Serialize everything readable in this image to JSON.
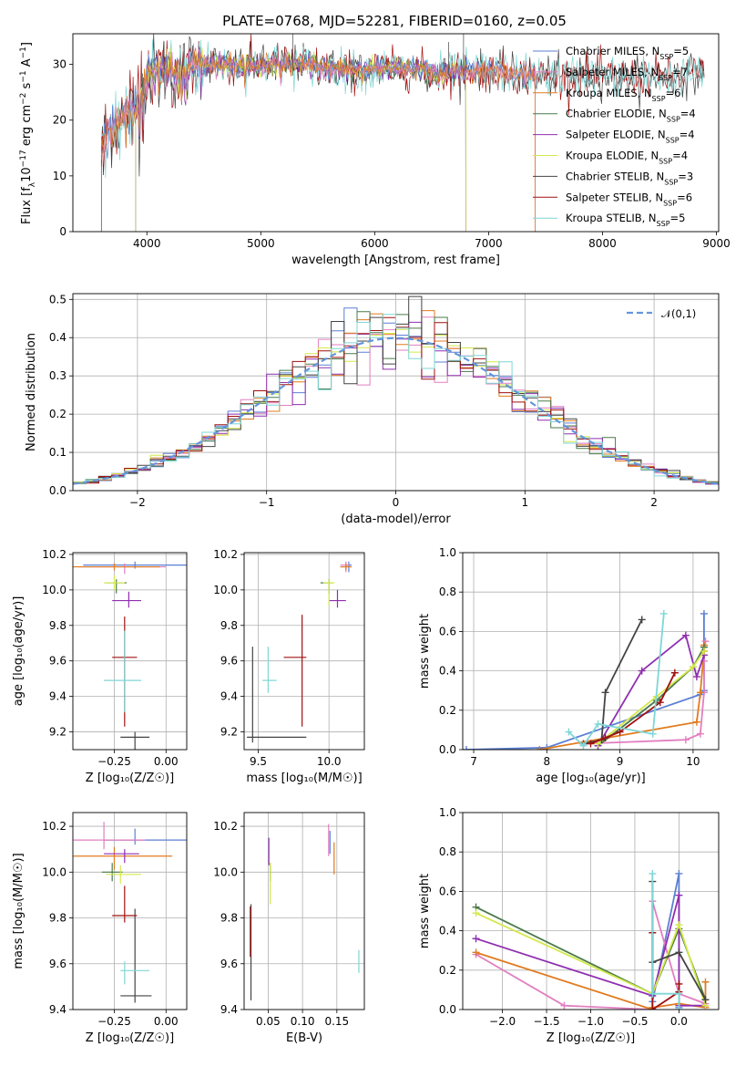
{
  "figure_title": "PLATE=0768, MJD=52281, FIBERID=0160, z=0.05",
  "colors": {
    "Chabrier MILES": "#5b7fd4",
    "Salpeter MILES": "#e27fc1",
    "Kroupa MILES": "#e07b1f",
    "Chabrier ELODIE": "#4a7a4a",
    "Salpeter ELODIE": "#8f2fb0",
    "Kroupa ELODIE": "#d4e84a",
    "Chabrier STELIB": "#444444",
    "Salpeter STELIB": "#a01010",
    "Kroupa STELIB": "#7fd6d6"
  },
  "chart_data": [
    {
      "id": "spectrum",
      "type": "line",
      "xlabel": "wavelength [Angstrom, rest frame]",
      "ylabel": "Flux [f_λ 10^-17 erg cm^-2 s^-1 A^-1]",
      "xlim": [
        3350,
        9020
      ],
      "ylim": [
        0,
        35.5
      ],
      "xticks": [
        4000,
        5000,
        6000,
        7000,
        8000,
        9000
      ],
      "yticks": [
        0,
        10,
        20,
        30
      ],
      "grid": false,
      "legend_placement": "upper-right",
      "legend": [
        {
          "name": "Chabrier MILES",
          "suffix": "=5"
        },
        {
          "name": "Salpeter MILES",
          "suffix": "=7"
        },
        {
          "name": "Kroupa MILES",
          "suffix": "=6"
        },
        {
          "name": "Chabrier ELODIE",
          "suffix": "=4"
        },
        {
          "name": "Salpeter ELODIE",
          "suffix": "=4"
        },
        {
          "name": "Kroupa ELODIE",
          "suffix": "=4"
        },
        {
          "name": "Chabrier STELIB",
          "suffix": "=3"
        },
        {
          "name": "Salpeter STELIB",
          "suffix": "=6"
        },
        {
          "name": "Kroupa STELIB",
          "suffix": "=5"
        }
      ],
      "legend_sub": "N",
      "legend_subscript": "SSP",
      "continuum": {
        "x": [
          3600,
          3700,
          3800,
          3900,
          4000,
          4100,
          4200,
          4300,
          4400,
          4500,
          4600,
          4800,
          5000,
          5200,
          5400,
          5600,
          5800,
          6000,
          6200,
          6400,
          6600,
          6800,
          7000,
          7200,
          7400,
          7600,
          7800,
          8000,
          8200,
          8400,
          8600,
          8800
        ],
        "y": [
          15.5,
          18.5,
          20.5,
          22,
          28,
          29.5,
          28.8,
          28.5,
          30,
          30.4,
          30.2,
          29.7,
          29.8,
          30.3,
          30,
          29.3,
          28.9,
          29.2,
          29.3,
          29.1,
          28.4,
          29.0,
          28.9,
          28.4,
          28.1,
          27.8,
          28.2,
          28.0,
          27.6,
          28.0,
          27.7,
          28.2
        ]
      }
    },
    {
      "id": "residuals",
      "type": "bar",
      "xlabel": "(data-model)/error",
      "ylabel": "Normed distribution",
      "xlim": [
        -2.5,
        2.5
      ],
      "ylim": [
        0,
        0.515
      ],
      "xticks": [
        -2,
        -1,
        0,
        1,
        2
      ],
      "yticks": [
        0.0,
        0.1,
        0.2,
        0.3,
        0.4,
        0.5
      ],
      "grid": true,
      "legend": [
        {
          "name": "𝒩(0,1)"
        }
      ],
      "legend_placement": "upper-right",
      "bin_width": 0.1,
      "bins_start": -2.5,
      "gaussian_mean": 0,
      "gaussian_sigma": 1
    },
    {
      "id": "age-vs-Z",
      "type": "errorbar",
      "xlabel": "Z [log₁₀(Z/Z☉)]",
      "ylabel": "age  [log₁₀(age/yr)]",
      "xlim": [
        -0.45,
        0.1
      ],
      "ylim": [
        9.1,
        10.21
      ],
      "xticks": [
        -0.25,
        0.0
      ],
      "yticks": [
        9.2,
        9.4,
        9.6,
        9.8,
        10.0,
        10.2
      ],
      "grid": true,
      "points": [
        {
          "s": "Chabrier MILES",
          "x": -0.15,
          "y": 10.14,
          "xe": [
            0.25,
            0.25
          ],
          "ye": [
            0.02,
            0.02
          ]
        },
        {
          "s": "Salpeter MILES",
          "x": -0.2,
          "y": 10.13,
          "xe": [
            0.22,
            0.2
          ],
          "ye": [
            0.04,
            0.02
          ]
        },
        {
          "s": "Kroupa MILES",
          "x": -0.25,
          "y": 10.13,
          "xe": [
            0.2,
            0.22
          ],
          "ye": [
            0.02,
            0.02
          ]
        },
        {
          "s": "Chabrier ELODIE",
          "x": -0.24,
          "y": 10.04,
          "xe": [
            0.05,
            0.05
          ],
          "ye": [
            0.06,
            0.02
          ]
        },
        {
          "s": "Salpeter ELODIE",
          "x": -0.18,
          "y": 9.94,
          "xe": [
            0.08,
            0.06
          ],
          "ye": [
            0.04,
            0.05
          ]
        },
        {
          "s": "Kroupa ELODIE",
          "x": -0.25,
          "y": 10.04,
          "xe": [
            0.05,
            0.05
          ],
          "ye": [
            0.04,
            0.04
          ]
        },
        {
          "s": "Chabrier STELIB",
          "x": -0.15,
          "y": 9.17,
          "xe": [
            0.07,
            0.07
          ],
          "ye": [
            0.5,
            0.03
          ]
        },
        {
          "s": "Salpeter STELIB",
          "x": -0.2,
          "y": 9.62,
          "xe": [
            0.06,
            0.06
          ],
          "ye": [
            0.39,
            0.23
          ]
        },
        {
          "s": "Kroupa STELIB",
          "x": -0.2,
          "y": 9.49,
          "xe": [
            0.1,
            0.08
          ],
          "ye": [
            0.18,
            0.28
          ]
        }
      ]
    },
    {
      "id": "age-vs-mass",
      "type": "errorbar",
      "xlabel": "mass [log₁₀(M/M☉)]",
      "ylabel": "",
      "xlim": [
        9.4,
        10.25
      ],
      "ylim": [
        9.1,
        10.21
      ],
      "xticks": [
        9.5,
        10.0
      ],
      "yticks": [
        9.2,
        9.4,
        9.6,
        9.8,
        10.0,
        10.2
      ],
      "grid": true,
      "points": [
        {
          "s": "Chabrier MILES",
          "x": 10.14,
          "y": 10.14,
          "xe": [
            0.02,
            0.02
          ],
          "ye": [
            0.04,
            0.02
          ]
        },
        {
          "s": "Salpeter MILES",
          "x": 10.12,
          "y": 10.14,
          "xe": [
            0.04,
            0.02
          ],
          "ye": [
            0.04,
            0.02
          ]
        },
        {
          "s": "Kroupa MILES",
          "x": 10.12,
          "y": 10.13,
          "xe": [
            0.04,
            0.04
          ],
          "ye": [
            0.02,
            0.02
          ]
        },
        {
          "s": "Chabrier ELODIE",
          "x": 10.0,
          "y": 10.04,
          "xe": [
            0.06,
            0.02
          ],
          "ye": [
            0.06,
            0.02
          ]
        },
        {
          "s": "Salpeter ELODIE",
          "x": 10.06,
          "y": 9.94,
          "xe": [
            0.06,
            0.06
          ],
          "ye": [
            0.04,
            0.06
          ]
        },
        {
          "s": "Kroupa ELODIE",
          "x": 10.0,
          "y": 10.04,
          "xe": [
            0.04,
            0.04
          ],
          "ye": [
            0.13,
            0.02
          ]
        },
        {
          "s": "Chabrier STELIB",
          "x": 9.46,
          "y": 9.17,
          "xe": [
            0.04,
            0.38
          ],
          "ye": [
            0.03,
            0.51
          ]
        },
        {
          "s": "Salpeter STELIB",
          "x": 9.81,
          "y": 9.62,
          "xe": [
            0.13,
            0.03
          ],
          "ye": [
            0.39,
            0.24
          ]
        },
        {
          "s": "Kroupa STELIB",
          "x": 9.57,
          "y": 9.49,
          "xe": [
            0.04,
            0.06
          ],
          "ye": [
            0.07,
            0.19
          ]
        }
      ]
    },
    {
      "id": "massweight-vs-age",
      "type": "line",
      "xlabel": "age  [log₁₀(age/yr)]",
      "ylabel": "mass weight",
      "xlim": [
        6.85,
        10.35
      ],
      "ylim": [
        0,
        1.0
      ],
      "xticks": [
        7,
        8,
        9,
        10
      ],
      "yticks": [
        0.0,
        0.2,
        0.4,
        0.6,
        0.8,
        1.0
      ],
      "grid": true,
      "series": [
        {
          "name": "Chabrier MILES",
          "x": [
            6.9,
            8.0,
            10.1,
            10.15,
            10.15
          ],
          "y": [
            0.0,
            0.01,
            0.28,
            0.3,
            0.69
          ]
        },
        {
          "name": "Salpeter MILES",
          "x": [
            8.5,
            9.9,
            10.1,
            10.15,
            10.15,
            10.15,
            10.17
          ],
          "y": [
            0.03,
            0.05,
            0.08,
            0.29,
            0.45,
            0.5,
            0.55
          ]
        },
        {
          "name": "Kroupa MILES",
          "x": [
            7.9,
            10.05,
            10.1,
            10.15,
            10.15,
            10.15
          ],
          "y": [
            0.0,
            0.14,
            0.29,
            0.5,
            0.53,
            0.53
          ]
        },
        {
          "name": "Chabrier ELODIE",
          "x": [
            8.7,
            9.5,
            10.0,
            10.15
          ],
          "y": [
            0.02,
            0.25,
            0.42,
            0.52
          ]
        },
        {
          "name": "Salpeter ELODIE",
          "x": [
            8.7,
            9.3,
            9.9,
            10.05,
            10.15
          ],
          "y": [
            0.02,
            0.4,
            0.58,
            0.37,
            0.48
          ]
        },
        {
          "name": "Kroupa ELODIE",
          "x": [
            8.7,
            9.5,
            10.0,
            10.15
          ],
          "y": [
            0.03,
            0.27,
            0.42,
            0.5
          ]
        },
        {
          "name": "Chabrier STELIB",
          "x": [
            8.5,
            8.75,
            8.8,
            9.3
          ],
          "y": [
            0.03,
            0.05,
            0.29,
            0.66
          ]
        },
        {
          "name": "Salpeter STELIB",
          "x": [
            8.6,
            8.8,
            9.0,
            9.55,
            9.75
          ],
          "y": [
            0.03,
            0.06,
            0.09,
            0.24,
            0.39
          ]
        },
        {
          "name": "Kroupa STELIB",
          "x": [
            8.3,
            8.5,
            8.7,
            9.45,
            9.6
          ],
          "y": [
            0.09,
            0.02,
            0.13,
            0.08,
            0.69
          ]
        }
      ]
    },
    {
      "id": "mass-vs-Z",
      "type": "errorbar",
      "xlabel": "Z [log₁₀(Z/Z☉)]",
      "ylabel": "mass [log₁₀(M/M☉)]",
      "xlim": [
        -0.45,
        0.1
      ],
      "ylim": [
        9.4,
        10.26
      ],
      "xticks": [
        -0.25,
        0.0
      ],
      "yticks": [
        9.4,
        9.6,
        9.8,
        10.0,
        10.2
      ],
      "grid": true,
      "points": [
        {
          "s": "Chabrier MILES",
          "x": -0.15,
          "y": 10.14,
          "xe": [
            0.15,
            0.25
          ],
          "ye": [
            0.02,
            0.05
          ]
        },
        {
          "s": "Salpeter MILES",
          "x": -0.3,
          "y": 10.14,
          "xe": [
            0.15,
            0.2
          ],
          "ye": [
            0.04,
            0.08
          ]
        },
        {
          "s": "Kroupa MILES",
          "x": -0.25,
          "y": 10.07,
          "xe": [
            0.2,
            0.28
          ],
          "ye": [
            0.06,
            0.04
          ]
        },
        {
          "s": "Chabrier ELODIE",
          "x": -0.26,
          "y": 10.0,
          "xe": [
            0.05,
            0.05
          ],
          "ye": [
            0.04,
            0.04
          ]
        },
        {
          "s": "Salpeter ELODIE",
          "x": -0.2,
          "y": 10.08,
          "xe": [
            0.1,
            0.07
          ],
          "ye": [
            0.04,
            0.02
          ]
        },
        {
          "s": "Kroupa ELODIE",
          "x": -0.22,
          "y": 9.99,
          "xe": [
            0.07,
            0.1
          ],
          "ye": [
            0.04,
            0.04
          ]
        },
        {
          "s": "Chabrier STELIB",
          "x": -0.15,
          "y": 9.46,
          "xe": [
            0.07,
            0.08
          ],
          "ye": [
            0.03,
            0.38
          ]
        },
        {
          "s": "Salpeter STELIB",
          "x": -0.2,
          "y": 9.81,
          "xe": [
            0.06,
            0.06
          ],
          "ye": [
            0.03,
            0.13
          ]
        },
        {
          "s": "Kroupa STELIB",
          "x": -0.2,
          "y": 9.57,
          "xe": [
            0.02,
            0.12
          ],
          "ye": [
            0.06,
            0.04
          ]
        }
      ]
    },
    {
      "id": "mass-vs-EBV",
      "type": "errorbar",
      "xlabel": "E(B-V)",
      "ylabel": "",
      "xlim": [
        0.015,
        0.19
      ],
      "ylim": [
        9.4,
        10.26
      ],
      "xticks": [
        0.05,
        0.1,
        0.15
      ],
      "yticks": [
        9.4,
        9.6,
        9.8,
        10.0,
        10.2
      ],
      "grid": true,
      "points": [
        {
          "s": "Chabrier MILES",
          "x": 0.14,
          "y": 10.14,
          "xe": [
            0,
            0
          ],
          "ye": [
            0.06,
            0.04
          ]
        },
        {
          "s": "Salpeter MILES",
          "x": 0.138,
          "y": 10.15,
          "xe": [
            0,
            0
          ],
          "ye": [
            0.08,
            0.06
          ]
        },
        {
          "s": "Kroupa MILES",
          "x": 0.146,
          "y": 10.07,
          "xe": [
            0,
            0
          ],
          "ye": [
            0.08,
            0.06
          ]
        },
        {
          "s": "Chabrier ELODIE",
          "x": 0.053,
          "y": 10.0,
          "xe": [
            0,
            0
          ],
          "ye": [
            0.04,
            0.04
          ]
        },
        {
          "s": "Salpeter ELODIE",
          "x": 0.051,
          "y": 10.08,
          "xe": [
            0,
            0
          ],
          "ye": [
            0.05,
            0.07
          ]
        },
        {
          "s": "Kroupa ELODIE",
          "x": 0.053,
          "y": 9.94,
          "xe": [
            0,
            0
          ],
          "ye": [
            0.08,
            0.1
          ]
        },
        {
          "s": "Chabrier STELIB",
          "x": 0.025,
          "y": 9.6,
          "xe": [
            0,
            0
          ],
          "ye": [
            0.16,
            0.26
          ]
        },
        {
          "s": "Salpeter STELIB",
          "x": 0.024,
          "y": 9.73,
          "xe": [
            0,
            0
          ],
          "ye": [
            0.1,
            0.12
          ]
        },
        {
          "s": "Kroupa STELIB",
          "x": 0.182,
          "y": 9.6,
          "xe": [
            0,
            0
          ],
          "ye": [
            0.04,
            0.06
          ]
        }
      ]
    },
    {
      "id": "massweight-vs-Z",
      "type": "line",
      "xlabel": "Z [log₁₀(Z/Z☉)]",
      "ylabel": "mass weight",
      "xlim": [
        -2.45,
        0.45
      ],
      "ylim": [
        0,
        1.0
      ],
      "xticks": [
        -2.0,
        -1.5,
        -1.0,
        -0.5,
        0.0
      ],
      "yticks": [
        0.0,
        0.2,
        0.4,
        0.6,
        0.8,
        1.0
      ],
      "grid": true,
      "series": [
        {
          "name": "Chabrier MILES",
          "x": [
            -0.3,
            -0.3,
            0.0,
            0.0
          ],
          "y": [
            0.01,
            0.04,
            0.69,
            0.01
          ]
        },
        {
          "name": "Salpeter MILES",
          "x": [
            -2.3,
            -1.3,
            -0.3,
            -0.3,
            0.0,
            0.3
          ],
          "y": [
            0.28,
            0.02,
            0.0,
            0.55,
            0.08,
            0.03
          ]
        },
        {
          "name": "Kroupa MILES",
          "x": [
            -2.3,
            -0.3,
            -0.3,
            0.0,
            0.3,
            0.3
          ],
          "y": [
            0.29,
            0.0,
            0.01,
            0.03,
            0.01,
            0.14
          ]
        },
        {
          "name": "Chabrier ELODIE",
          "x": [
            -2.3,
            -0.3,
            0.0,
            0.3
          ],
          "y": [
            0.52,
            0.08,
            0.41,
            0.05
          ]
        },
        {
          "name": "Salpeter ELODIE",
          "x": [
            -2.3,
            -0.3,
            0.0,
            0.0,
            0.3
          ],
          "y": [
            0.36,
            0.07,
            0.58,
            0.02,
            0.02
          ]
        },
        {
          "name": "Kroupa ELODIE",
          "x": [
            -2.3,
            -0.3,
            0.0,
            0.3
          ],
          "y": [
            0.49,
            0.08,
            0.43,
            0.02
          ]
        },
        {
          "name": "Chabrier STELIB",
          "x": [
            -0.3,
            -0.3,
            0.0,
            0.3
          ],
          "y": [
            0.65,
            0.24,
            0.29,
            0.05
          ]
        },
        {
          "name": "Salpeter STELIB",
          "x": [
            -0.3,
            -0.3,
            0.0,
            0.0
          ],
          "y": [
            0.39,
            0.0,
            0.09,
            0.13
          ]
        },
        {
          "name": "Kroupa STELIB",
          "x": [
            -0.3,
            -0.3,
            0.0,
            0.0
          ],
          "y": [
            0.69,
            0.08,
            0.08,
            0.0
          ]
        }
      ]
    }
  ]
}
